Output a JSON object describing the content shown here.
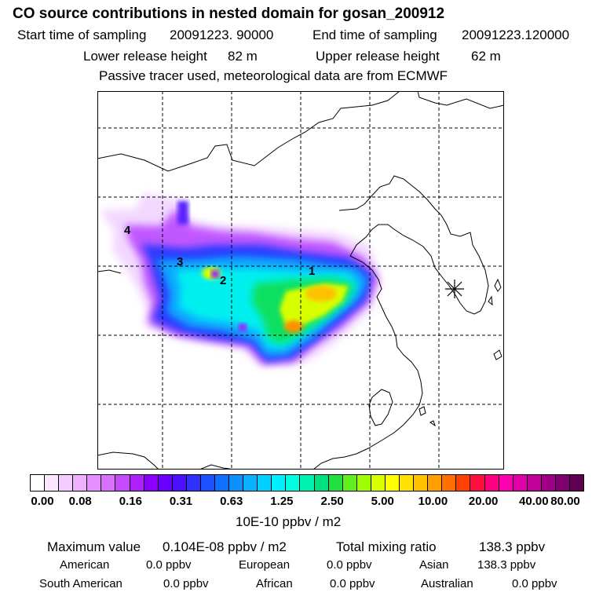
{
  "title": "CO  source contributions in nested domain for gosan_200912",
  "header": {
    "start_label": "Start time of sampling",
    "start_value": "20091223. 90000",
    "end_label": "End time of sampling",
    "end_value": "20091223.120000",
    "lower_label": "Lower release height",
    "lower_value": "82 m",
    "upper_label": "Upper release height",
    "upper_value": "62 m",
    "note": "Passive tracer used, meteorological data are from ECMWF"
  },
  "map": {
    "receptor_symbol": "receptor-star",
    "source_markers": [
      "1",
      "2",
      "3",
      "4"
    ]
  },
  "colorbar": {
    "ticks": [
      "0.00",
      "0.08",
      "0.16",
      "0.31",
      "0.63",
      "1.25",
      "2.50",
      "5.00",
      "10.00",
      "20.00",
      "40.00",
      "80.00"
    ],
    "colors": [
      "#ffffff",
      "#fbe6ff",
      "#f5ccff",
      "#efb0ff",
      "#e690ff",
      "#d970ff",
      "#c84aff",
      "#b020ff",
      "#8a00ff",
      "#6a00ff",
      "#4a10ff",
      "#3030ff",
      "#1f50ff",
      "#1070ff",
      "#0a90ff",
      "#08b0ff",
      "#00d0ff",
      "#00f0ff",
      "#00ffe0",
      "#00f0b0",
      "#00e080",
      "#20e040",
      "#60f020",
      "#a0ff00",
      "#d8ff00",
      "#ffff00",
      "#ffe000",
      "#ffc000",
      "#ffa000",
      "#ff7000",
      "#ff4000",
      "#ff1040",
      "#ff0080",
      "#ff00b0",
      "#e000a8",
      "#c00098",
      "#a00088",
      "#800070",
      "#600050"
    ],
    "unit": "10E-10 ppbv / m2"
  },
  "footer": {
    "max_label": "Maximum value",
    "max_value": "0.104E-08 ppbv / m2",
    "total_label": "Total mixing ratio",
    "total_value": "138.3 ppbv",
    "american_label": "American",
    "american_value": "0.0 ppbv",
    "european_label": "European",
    "european_value": "0.0 ppbv",
    "asian_label": "Asian",
    "asian_value": "138.3 ppbv",
    "south_american_label": "South American",
    "south_american_value": "0.0 ppbv",
    "african_label": "African",
    "african_value": "0.0 ppbv",
    "australian_label": "Australian",
    "australian_value": "0.0 ppbv"
  }
}
